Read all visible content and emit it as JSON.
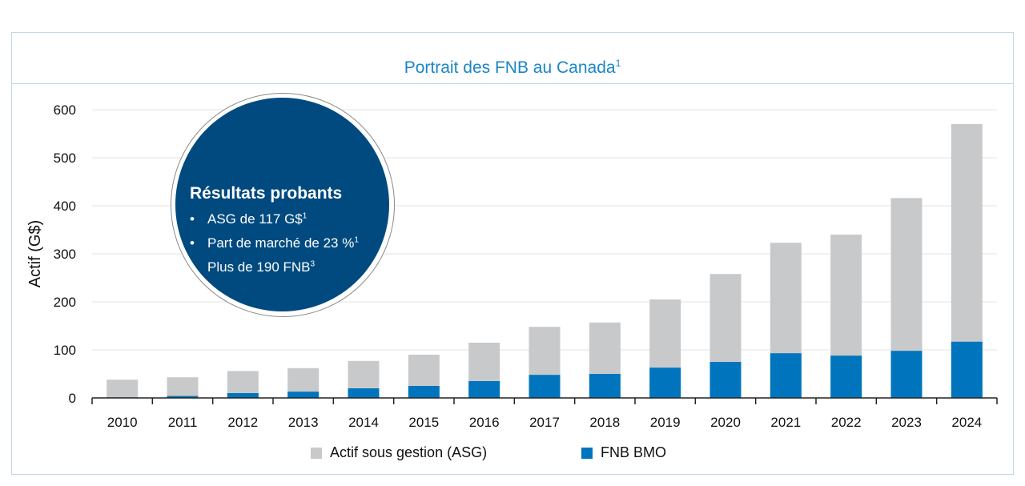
{
  "chart_data": {
    "type": "bar",
    "stacked": "overlay",
    "title": "Portrait des FNB au Canada",
    "title_footnote": "1",
    "ylabel": "Actif (G$)",
    "xlabel": "",
    "ylim": [
      0,
      600
    ],
    "yticks": [
      0,
      100,
      200,
      300,
      400,
      500,
      600
    ],
    "grid": true,
    "legend_position": "bottom",
    "categories": [
      "2010",
      "2011",
      "2012",
      "2013",
      "2014",
      "2015",
      "2016",
      "2017",
      "2018",
      "2019",
      "2020",
      "2021",
      "2022",
      "2023",
      "2024"
    ],
    "series": [
      {
        "name": "Actif sous gestion (ASG)",
        "color": "#c8c9cb",
        "values": [
          38,
          43,
          56,
          62,
          77,
          90,
          115,
          148,
          157,
          205,
          258,
          323,
          340,
          416,
          570
        ]
      },
      {
        "name": "FNB BMO",
        "color": "#0075be",
        "values": [
          1,
          4,
          10,
          13,
          20,
          25,
          35,
          48,
          50,
          63,
          75,
          93,
          88,
          98,
          117
        ]
      }
    ],
    "annotation": {
      "heading": "Résultats probants",
      "bullet": "•",
      "items": [
        {
          "text": "ASG de 117 G$",
          "sup": "1"
        },
        {
          "text": "Part de marché de 23 %",
          "sup": "1"
        },
        {
          "text": "Plus de 190 FNB",
          "sup": "3"
        }
      ],
      "color": "#004a7f"
    }
  }
}
